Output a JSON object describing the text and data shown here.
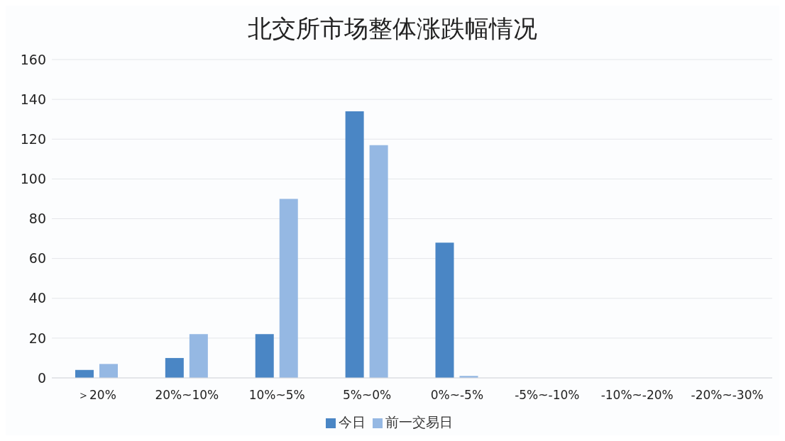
{
  "chart_data": {
    "type": "bar",
    "title": "北交所市场整体涨跌幅情况",
    "categories": [
      "＞20%",
      "20%~10%",
      "10%~5%",
      "5%~0%",
      "0%~-5%",
      "-5%~-10%",
      "-10%~-20%",
      "-20%~-30%"
    ],
    "series": [
      {
        "name": "今日",
        "color": "#4a86c5",
        "values": [
          4,
          10,
          22,
          134,
          68,
          0,
          0,
          0
        ]
      },
      {
        "name": "前一交易日",
        "color": "#95b8e3",
        "values": [
          7,
          22,
          90,
          117,
          1,
          0,
          0,
          0
        ]
      }
    ],
    "ylim": [
      0,
      160
    ],
    "yticks": [
      0,
      20,
      40,
      60,
      80,
      100,
      120,
      140,
      160
    ],
    "grid": "y",
    "legend": "bottom"
  }
}
